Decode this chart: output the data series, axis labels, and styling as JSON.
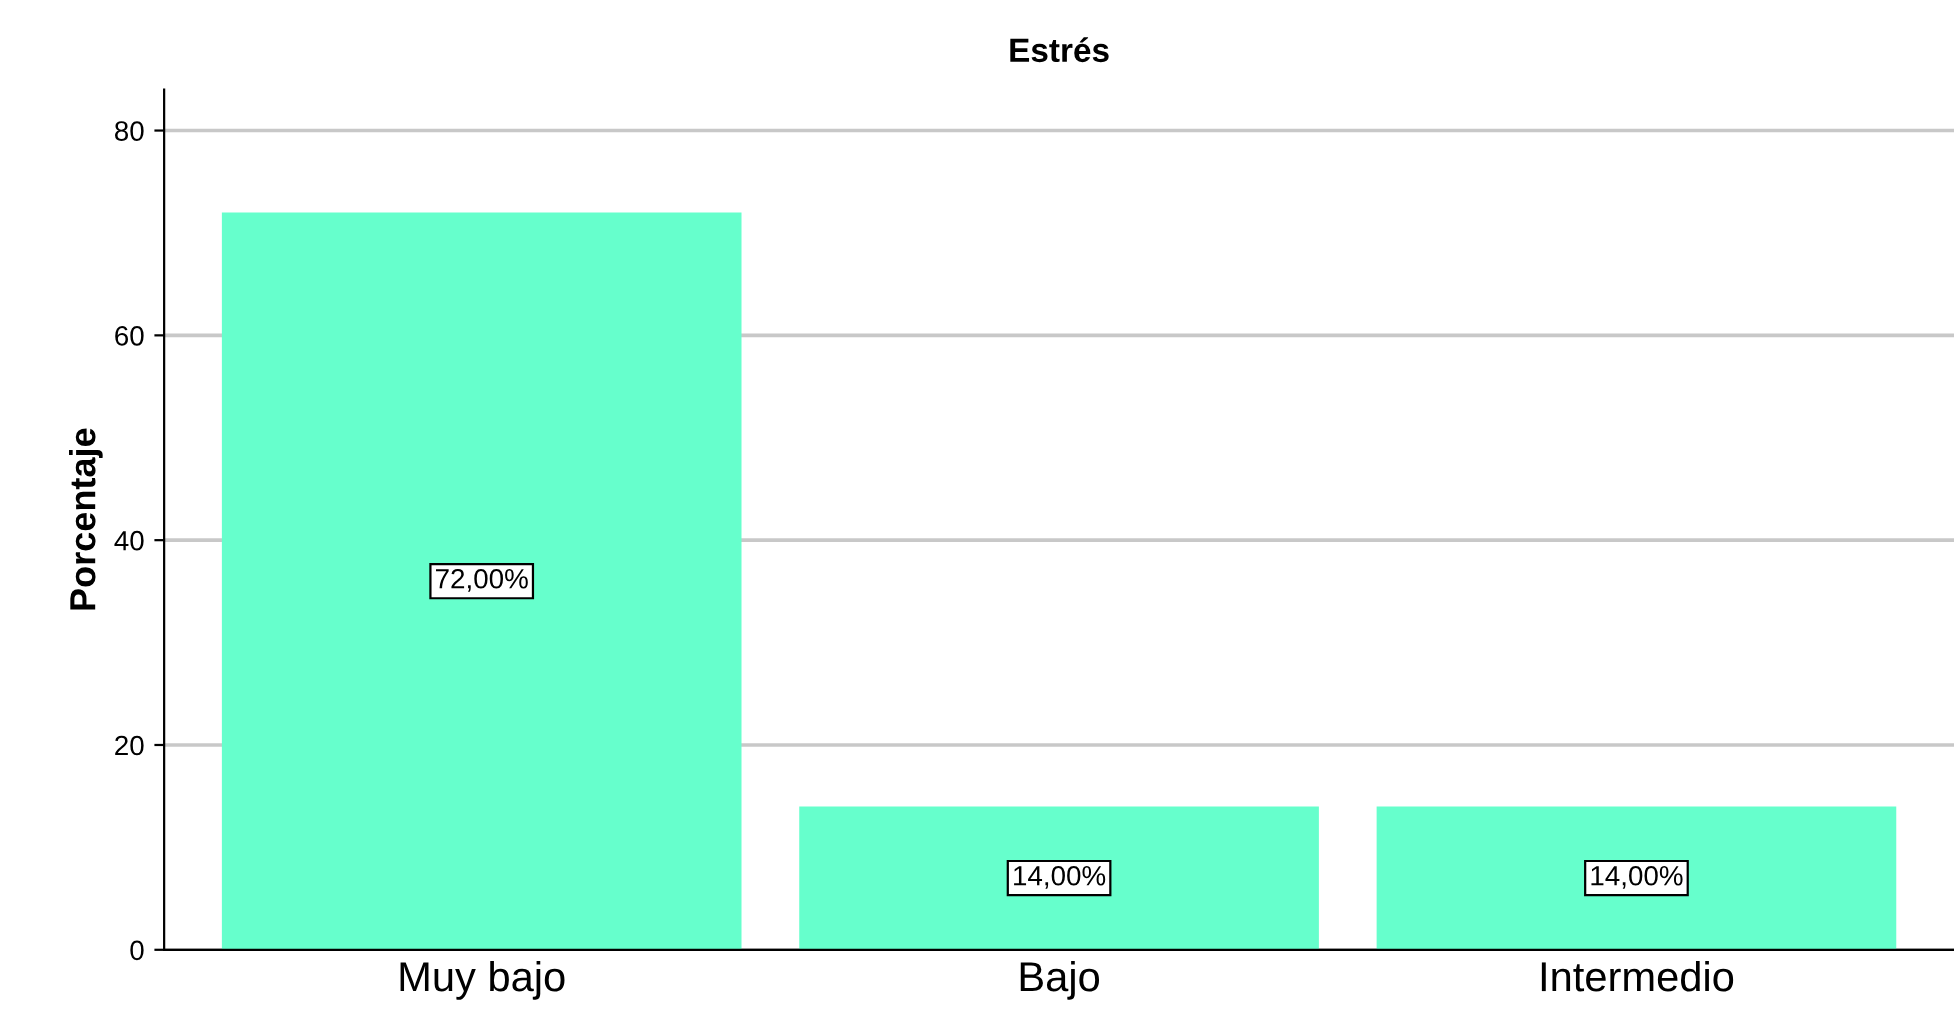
{
  "chart_data": {
    "type": "bar",
    "title": "Estrés",
    "ylabel": "Porcentaje",
    "categories": [
      "Muy bajo",
      "Bajo",
      "Intermedio"
    ],
    "values": [
      72,
      14,
      14
    ],
    "color": "#66ffcc",
    "value_labels": [
      "72,00%",
      "14,00%",
      "14,00%"
    ],
    "ylim": [
      0,
      84
    ],
    "yticks": [
      0,
      20,
      40,
      60,
      80
    ],
    "grid": "y"
  }
}
